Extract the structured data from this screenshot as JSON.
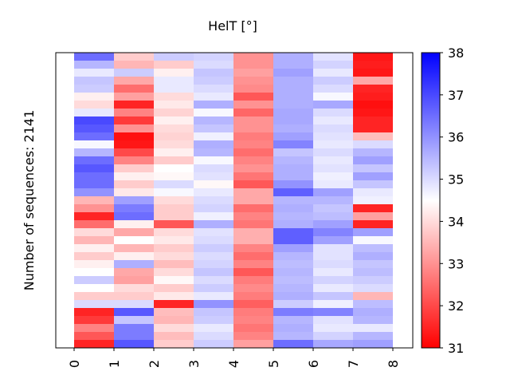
{
  "chart_data": {
    "type": "heatmap",
    "title": "HelT [°]",
    "ylabel": "Number of sequences: 2141",
    "xlabel": "",
    "x_tick_labels": [
      "0",
      "1",
      "2",
      "3",
      "4",
      "5",
      "6",
      "7",
      "8"
    ],
    "colorbar": {
      "min": 31,
      "max": 38,
      "ticks": [
        "31",
        "32",
        "33",
        "34",
        "35",
        "36",
        "37",
        "38"
      ],
      "colormap": "bwr",
      "low_color": "#ff0000",
      "mid_color": "#ffffff",
      "high_color": "#0000ff"
    },
    "n_sequences": 2141,
    "note_rows": "values summarized as 37 row bands per column (top to bottom)",
    "columns": [
      [
        36.5,
        35.5,
        34.8,
        35.3,
        35.2,
        34.3,
        34.0,
        34.8,
        37,
        36.8,
        36.5,
        34.6,
        35.5,
        36.5,
        36.8,
        36.5,
        36.5,
        36,
        33.5,
        33,
        31.5,
        32.5,
        34,
        33.5,
        34.3,
        33.8,
        34.3,
        34.5,
        35.2,
        34.5,
        33.8,
        35,
        31.5,
        31.8,
        32.8,
        32.2,
        31.5
      ],
      [
        33.8,
        33.5,
        35.2,
        33.3,
        32.5,
        33.2,
        31.5,
        32.8,
        31.8,
        33,
        31.2,
        31.3,
        32,
        32.8,
        33.8,
        34.3,
        33.8,
        34.2,
        35.8,
        36.3,
        36.5,
        34.3,
        33.3,
        34.5,
        33.5,
        34.3,
        35.6,
        33.3,
        33.2,
        34,
        33.8,
        35,
        36.8,
        35.3,
        36.3,
        36.3,
        36.8
      ],
      [
        35.2,
        33.8,
        34.3,
        34.8,
        34.8,
        34.0,
        34.2,
        33.9,
        34.3,
        34,
        33.9,
        34,
        34.3,
        33.8,
        34.5,
        34.4,
        35.0,
        34.6,
        34.0,
        33.8,
        33.8,
        32.2,
        34,
        34.2,
        33.8,
        34.0,
        33.6,
        34.0,
        34.4,
        33.8,
        34.2,
        31.5,
        33.6,
        33.5,
        34,
        33.6,
        33.8
      ],
      [
        35.1,
        35.0,
        35.3,
        35.2,
        35.0,
        34.8,
        35.6,
        34.6,
        35.5,
        35.3,
        34.7,
        35.6,
        35.5,
        34.6,
        35.0,
        34.9,
        34.4,
        34.8,
        35.0,
        35.1,
        34.7,
        35.6,
        34.9,
        35.0,
        35.2,
        35.0,
        35.1,
        35.3,
        35.0,
        35.2,
        34.8,
        36.0,
        35.3,
        35.2,
        34.8,
        35.0,
        35.2
      ],
      [
        33.0,
        33.0,
        33.2,
        33.0,
        32.9,
        32.2,
        33.0,
        32.4,
        33.0,
        33.0,
        32.7,
        32.8,
        32.5,
        32.8,
        33.0,
        32.6,
        32.2,
        33.3,
        33.3,
        32.5,
        32.8,
        32.6,
        33.4,
        33.4,
        32.8,
        32.5,
        32.8,
        32.2,
        32.7,
        32.9,
        32.7,
        32.3,
        32.7,
        32.8,
        32.6,
        32.8,
        33.2
      ],
      [
        35.6,
        35.6,
        35.8,
        35.6,
        35.6,
        35.6,
        35.6,
        35.7,
        35.7,
        35.6,
        35.8,
        36.2,
        35.3,
        35.5,
        35.6,
        35.6,
        36.0,
        36.7,
        35.5,
        35.6,
        35.5,
        35.6,
        36.7,
        36.7,
        35.8,
        35.5,
        35.4,
        35.5,
        35.4,
        35.5,
        35.6,
        35.2,
        36.3,
        35.5,
        35.6,
        35.5,
        36.5
      ],
      [
        34.9,
        35.1,
        34.8,
        35.2,
        35.0,
        34.6,
        35.7,
        35.0,
        34.8,
        35.0,
        34.9,
        34.8,
        35.0,
        34.8,
        34.9,
        34.7,
        34.8,
        35.8,
        35.5,
        35.3,
        35.4,
        35.8,
        36.2,
        35.8,
        34.9,
        34.9,
        35.0,
        34.8,
        35.1,
        34.8,
        35.3,
        34.7,
        36.2,
        34.9,
        34.8,
        35.1,
        35.7
      ],
      [
        31.3,
        31.4,
        31.3,
        33.3,
        31.5,
        31.4,
        31.2,
        31.3,
        31.5,
        31.5,
        33.6,
        35.0,
        35.5,
        35.8,
        35.3,
        35.8,
        35.3,
        34.8,
        34.7,
        31.5,
        33.2,
        31.5,
        35.8,
        34.6,
        35.4,
        35.6,
        35.3,
        35.4,
        35.2,
        35.0,
        33.5,
        35.4,
        35.6,
        35.5,
        34.8,
        35.5,
        35.8
      ]
    ]
  }
}
